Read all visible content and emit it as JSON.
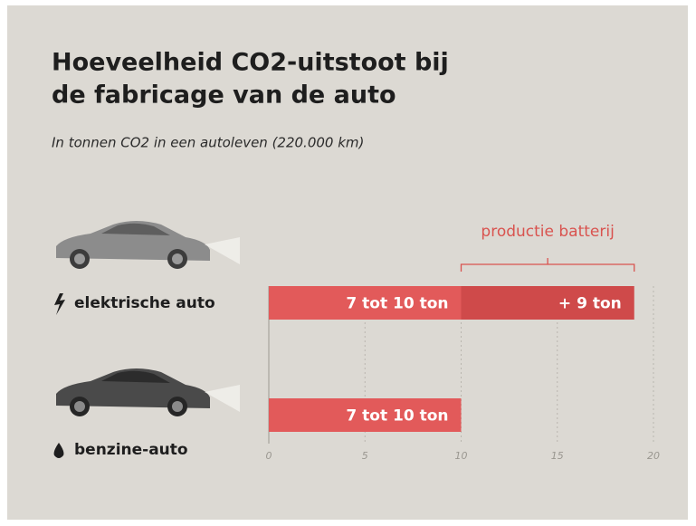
{
  "chart_data": {
    "type": "stacked-bar-horizontal",
    "title": [
      "Hoeveelheid CO2-uitstoot bij",
      "de fabricage van de auto"
    ],
    "subtitle": "In tonnen CO2 in een autoleven (220.000 km)",
    "categories": [
      "elektrische auto",
      "benzine-auto"
    ],
    "series": [
      {
        "color": "#e25a5a",
        "values": [
          10,
          10
        ],
        "value_labels": [
          "7 tot 10 ton",
          "7 tot 10 ton"
        ]
      },
      {
        "color": "#cf4a4a",
        "values": [
          9,
          null
        ],
        "value_labels": [
          "+ 9 ton",
          null
        ]
      }
    ],
    "annotation": "productie batterij",
    "xlim": [
      0,
      20
    ],
    "xticks": [
      0,
      5,
      10,
      15,
      20
    ],
    "grid": true
  }
}
